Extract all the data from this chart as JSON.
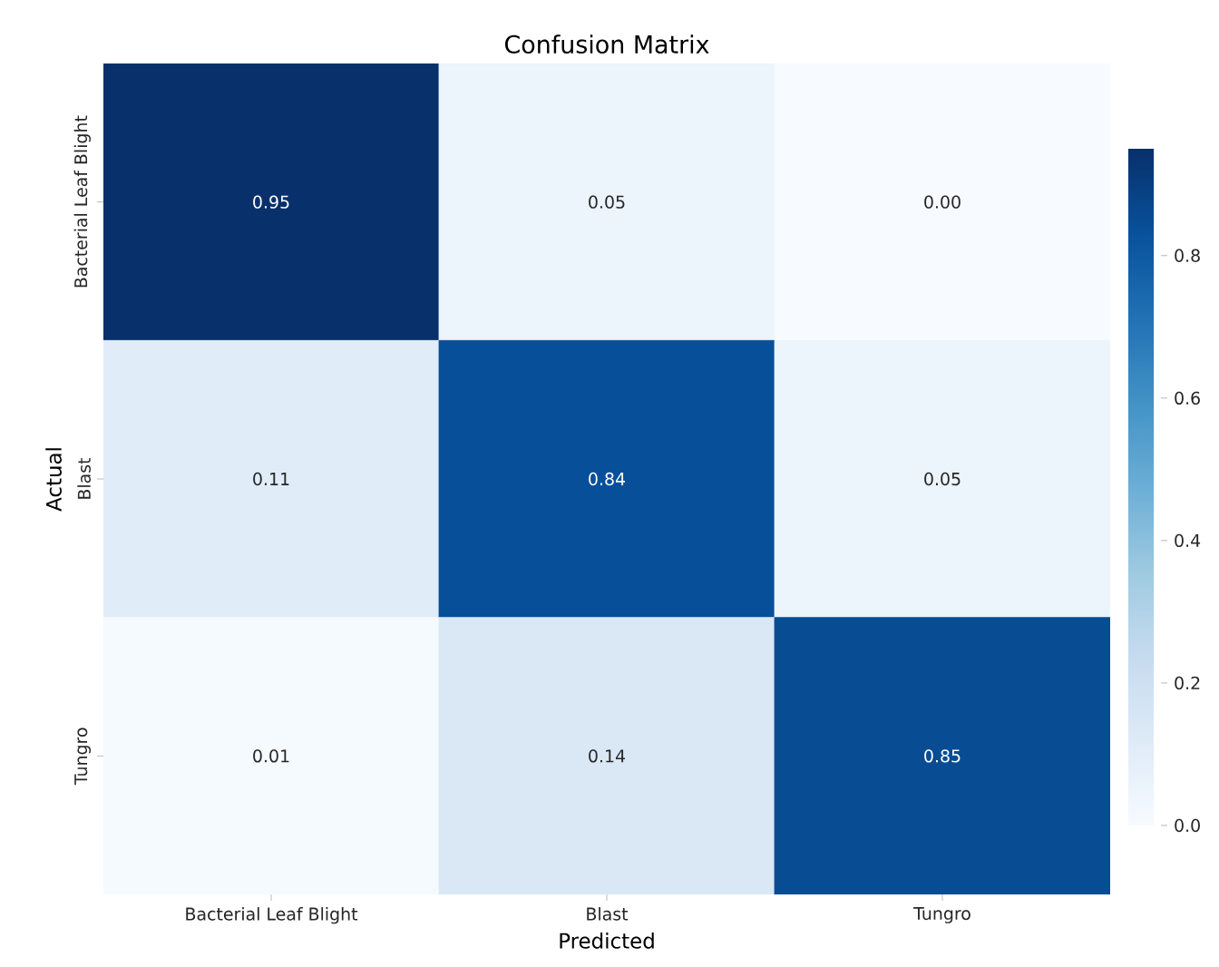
{
  "chart_data": {
    "type": "heatmap",
    "title": "Confusion Matrix",
    "xlabel": "Predicted",
    "ylabel": "Actual",
    "categories": [
      "Bacterial Leaf Blight",
      "Blast",
      "Tungro"
    ],
    "y_categories": [
      "Bacterial Leaf Blight",
      "Blast",
      "Tungro"
    ],
    "cells": [
      [
        0.95,
        0.05,
        0.0
      ],
      [
        0.11,
        0.84,
        0.05
      ],
      [
        0.01,
        0.14,
        0.85
      ]
    ],
    "cell_labels": [
      [
        "0.95",
        "0.05",
        "0.00"
      ],
      [
        "0.11",
        "0.84",
        "0.05"
      ],
      [
        "0.01",
        "0.14",
        "0.85"
      ]
    ],
    "clim": [
      0,
      0.95
    ],
    "cticks": [
      {
        "value": 0,
        "label": "0.0"
      },
      {
        "value": 0.2,
        "label": "0.2"
      },
      {
        "value": 0.4,
        "label": "0.4"
      },
      {
        "value": 0.6,
        "label": "0.6"
      },
      {
        "value": 0.8,
        "label": "0.8"
      }
    ]
  }
}
